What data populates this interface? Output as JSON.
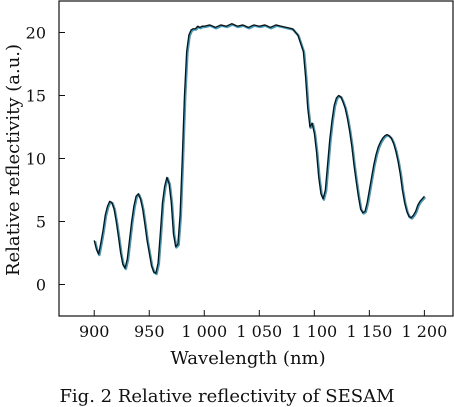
{
  "chart_data": {
    "type": "line",
    "title": "",
    "xlabel": "Wavelength (nm)",
    "ylabel": "Relative reflectivity (a.u.)",
    "xlim": [
      868,
      1226
    ],
    "ylim": [
      -2.5,
      22.5
    ],
    "grid": false,
    "legend": "none",
    "x_ticks": [
      900,
      950,
      1000,
      1050,
      1100,
      1150,
      1200
    ],
    "x_tick_labels": [
      "900",
      "950",
      "1 000",
      "1 050",
      "1 100",
      "1 150",
      "1 200"
    ],
    "y_ticks": [
      0,
      5,
      10,
      15,
      20
    ],
    "y_tick_labels": [
      "0",
      "5",
      "10",
      "15",
      "20"
    ],
    "line_color": "#111111",
    "shadow_color": "#2b8fb3",
    "series": [
      {
        "x": [
          900,
          902,
          904,
          906,
          908,
          910,
          912,
          914,
          916,
          918,
          920,
          922,
          924,
          926,
          928,
          930,
          932,
          934,
          936,
          938,
          940,
          942,
          944,
          946,
          948,
          950,
          952,
          954,
          956,
          958,
          960,
          962,
          964,
          966,
          968,
          970,
          972,
          974,
          976,
          978,
          980,
          982,
          984,
          986,
          988,
          990,
          992,
          994,
          996,
          998,
          1000,
          1005,
          1010,
          1015,
          1020,
          1025,
          1030,
          1035,
          1040,
          1045,
          1050,
          1055,
          1060,
          1065,
          1070,
          1075,
          1080,
          1085,
          1090,
          1092,
          1094,
          1096,
          1098,
          1100,
          1102,
          1104,
          1106,
          1108,
          1110,
          1112,
          1114,
          1116,
          1118,
          1120,
          1122,
          1124,
          1126,
          1128,
          1130,
          1132,
          1134,
          1136,
          1138,
          1140,
          1142,
          1144,
          1146,
          1148,
          1150,
          1152,
          1154,
          1156,
          1158,
          1160,
          1162,
          1164,
          1166,
          1168,
          1170,
          1172,
          1174,
          1176,
          1178,
          1180,
          1182,
          1184,
          1186,
          1188,
          1190,
          1192,
          1194,
          1196,
          1198,
          1200
        ],
        "y": [
          3.5,
          2.8,
          2.4,
          3.3,
          4.3,
          5.5,
          6.2,
          6.6,
          6.5,
          6.0,
          5.0,
          3.8,
          2.5,
          1.6,
          1.3,
          2.0,
          3.5,
          5.0,
          6.2,
          7.0,
          7.2,
          6.8,
          6.0,
          4.8,
          3.5,
          2.5,
          1.5,
          1.0,
          0.9,
          1.7,
          4.0,
          6.5,
          7.8,
          8.5,
          8.0,
          6.5,
          4.0,
          3.0,
          3.2,
          5.5,
          10.0,
          15.0,
          18.5,
          19.8,
          20.2,
          20.3,
          20.3,
          20.5,
          20.4,
          20.5,
          20.5,
          20.6,
          20.4,
          20.6,
          20.5,
          20.7,
          20.5,
          20.6,
          20.4,
          20.6,
          20.5,
          20.6,
          20.4,
          20.6,
          20.5,
          20.4,
          20.3,
          19.8,
          18.5,
          16.5,
          14.0,
          12.5,
          12.8,
          12.0,
          10.5,
          8.5,
          7.2,
          6.8,
          7.5,
          9.5,
          11.5,
          13.0,
          14.2,
          14.8,
          15.0,
          14.9,
          14.5,
          14.0,
          13.2,
          12.2,
          11.0,
          9.5,
          8.2,
          7.0,
          6.0,
          5.7,
          5.8,
          6.5,
          7.5,
          8.5,
          9.5,
          10.3,
          10.9,
          11.3,
          11.6,
          11.8,
          11.9,
          11.8,
          11.6,
          11.2,
          10.6,
          9.8,
          8.8,
          7.5,
          6.5,
          5.8,
          5.4,
          5.3,
          5.5,
          5.8,
          6.3,
          6.6,
          6.8,
          7.0
        ]
      }
    ]
  },
  "caption": "Fig. 2  Relative reflectivity of SESAM"
}
